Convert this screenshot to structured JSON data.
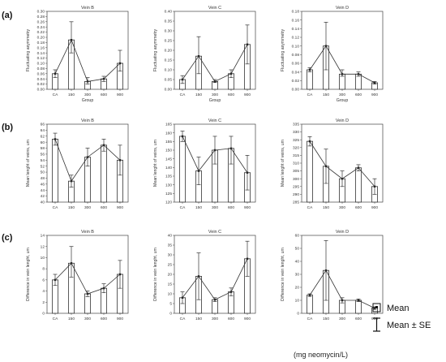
{
  "figure": {
    "row_labels": [
      "(a)",
      "(b)",
      "(c)"
    ],
    "legend": {
      "mean_label": "Mean",
      "se_label": "Mean ± SE"
    },
    "unit_label": "(mg neomycin/L)"
  },
  "chart_data": [
    {
      "type": "bar",
      "row": 0,
      "col": 0,
      "title": "Vein B",
      "xlabel": "Group",
      "ylabel": "Fluctuating asymmetry",
      "categories": [
        "CA",
        "150",
        "300",
        "600",
        "900"
      ],
      "values": [
        0.06,
        0.19,
        0.03,
        0.04,
        0.1
      ],
      "se_low": [
        0.045,
        0.14,
        0.02,
        0.03,
        0.07
      ],
      "se_high": [
        0.075,
        0.26,
        0.045,
        0.05,
        0.15
      ],
      "ylim": [
        0,
        0.3
      ],
      "yticks": [
        "0.00",
        "0.02",
        "0.04",
        "0.06",
        "0.08",
        "0.10",
        "0.12",
        "0.14",
        "0.16",
        "0.18",
        "0.20",
        "0.22",
        "0.24",
        "0.26",
        "0.28",
        "0.30"
      ]
    },
    {
      "type": "bar",
      "row": 0,
      "col": 1,
      "title": "Vein C",
      "xlabel": "Group",
      "ylabel": "Fluctuating asymmetry",
      "categories": [
        "CA",
        "150",
        "300",
        "600",
        "900"
      ],
      "values": [
        0.05,
        0.17,
        0.04,
        0.08,
        0.23
      ],
      "se_low": [
        0.03,
        0.08,
        0.035,
        0.06,
        0.13
      ],
      "se_high": [
        0.07,
        0.27,
        0.05,
        0.1,
        0.33
      ],
      "ylim": [
        0,
        0.4
      ],
      "yticks": [
        "0.00",
        "0.05",
        "0.10",
        "0.15",
        "0.20",
        "0.25",
        "0.30",
        "0.35",
        "0.40"
      ]
    },
    {
      "type": "bar",
      "row": 0,
      "col": 2,
      "title": "Vein D",
      "xlabel": "Group",
      "ylabel": "Fluctuating asymmetry",
      "categories": [
        "CA",
        "150",
        "300",
        "600",
        "900"
      ],
      "values": [
        0.045,
        0.1,
        0.035,
        0.035,
        0.015
      ],
      "se_low": [
        0.04,
        0.045,
        0.03,
        0.03,
        0.012
      ],
      "se_high": [
        0.05,
        0.155,
        0.045,
        0.04,
        0.018
      ],
      "ylim": [
        0,
        0.18
      ],
      "yticks": [
        "0.00",
        "0.02",
        "0.04",
        "0.06",
        "0.08",
        "0.10",
        "0.12",
        "0.14",
        "0.16",
        "0.18"
      ]
    },
    {
      "type": "bar",
      "row": 1,
      "col": 0,
      "title": "Vein B",
      "xlabel": "",
      "ylabel": "Mean lenght of veins, um",
      "categories": [
        "CA",
        "150",
        "300",
        "600",
        "900"
      ],
      "values": [
        61,
        47,
        55,
        59,
        54
      ],
      "se_low": [
        59,
        45,
        52,
        57,
        49
      ],
      "se_high": [
        63,
        49,
        58,
        61,
        59
      ],
      "ylim": [
        40,
        66
      ],
      "yticks": [
        "40",
        "42",
        "44",
        "46",
        "48",
        "50",
        "52",
        "54",
        "56",
        "58",
        "60",
        "62",
        "64",
        "66"
      ]
    },
    {
      "type": "bar",
      "row": 1,
      "col": 1,
      "title": "Vein C",
      "xlabel": "",
      "ylabel": "Mean lenght of veins, um",
      "categories": [
        "CA",
        "150",
        "300",
        "600",
        "900"
      ],
      "values": [
        158,
        138,
        150,
        151,
        137
      ],
      "se_low": [
        155,
        130,
        142,
        142,
        127
      ],
      "se_high": [
        161,
        146,
        158,
        158,
        147
      ],
      "ylim": [
        120,
        165
      ],
      "yticks": [
        "120",
        "125",
        "130",
        "135",
        "140",
        "145",
        "150",
        "155",
        "160",
        "165"
      ]
    },
    {
      "type": "bar",
      "row": 1,
      "col": 2,
      "title": "Vein D",
      "xlabel": "",
      "ylabel": "Mean lenght of veins, um",
      "categories": [
        "CA",
        "150",
        "300",
        "600",
        "900"
      ],
      "values": [
        324,
        308,
        300,
        307,
        295
      ],
      "se_low": [
        321,
        297,
        295,
        305,
        290
      ],
      "se_high": [
        327,
        319,
        305,
        309,
        300
      ],
      "ylim": [
        285,
        335
      ],
      "yticks": [
        "285",
        "290",
        "295",
        "300",
        "305",
        "310",
        "315",
        "320",
        "325",
        "330",
        "335"
      ]
    },
    {
      "type": "bar",
      "row": 2,
      "col": 0,
      "title": "Vein B",
      "xlabel": "",
      "ylabel": "Difference in vein lenght, um",
      "categories": [
        "CA",
        "150",
        "300",
        "600",
        "900"
      ],
      "values": [
        6,
        9,
        3.5,
        4.5,
        7
      ],
      "se_low": [
        5,
        6.5,
        3,
        3.7,
        4.5
      ],
      "se_high": [
        7,
        12,
        4,
        5.3,
        9.5
      ],
      "ylim": [
        0,
        14
      ],
      "yticks": [
        "0",
        "2",
        "4",
        "6",
        "8",
        "10",
        "12",
        "14"
      ]
    },
    {
      "type": "bar",
      "row": 2,
      "col": 1,
      "title": "Vein C",
      "xlabel": "",
      "ylabel": "Difference in vein lenght, um",
      "categories": [
        "CA",
        "150",
        "300",
        "600",
        "900"
      ],
      "values": [
        8,
        19,
        7,
        11,
        28
      ],
      "se_low": [
        5,
        7,
        6,
        9,
        19
      ],
      "se_high": [
        11,
        31,
        8,
        13,
        37
      ],
      "ylim": [
        0,
        40
      ],
      "yticks": [
        "0",
        "5",
        "10",
        "15",
        "20",
        "25",
        "30",
        "35",
        "40"
      ]
    },
    {
      "type": "bar",
      "row": 2,
      "col": 2,
      "title": "Vein D",
      "xlabel": "",
      "ylabel": "Difference in vein lenght, um",
      "categories": [
        "CA",
        "150",
        "300",
        "600",
        "900"
      ],
      "values": [
        14,
        33,
        10,
        10,
        4
      ],
      "se_low": [
        13,
        10,
        8,
        9,
        3
      ],
      "se_high": [
        15,
        56,
        12,
        11,
        5
      ],
      "ylim": [
        0,
        60
      ],
      "yticks": [
        "0",
        "10",
        "20",
        "30",
        "40",
        "50",
        "60"
      ]
    }
  ]
}
